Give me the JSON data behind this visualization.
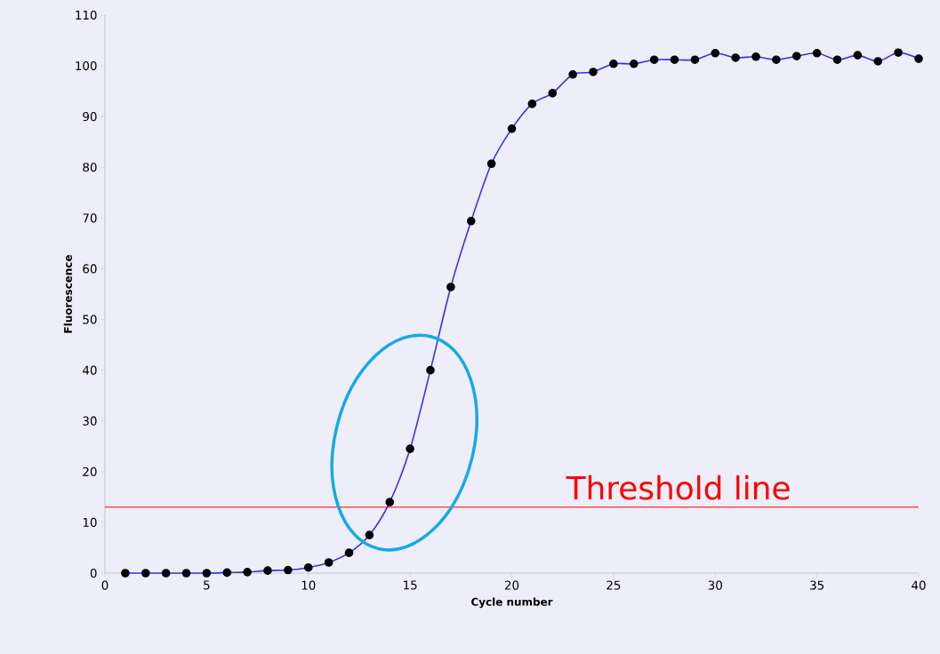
{
  "chart_data": {
    "type": "line",
    "xlabel": "Cycle number",
    "ylabel": "Fluorescence",
    "x": [
      1,
      2,
      3,
      4,
      5,
      6,
      7,
      8,
      9,
      10,
      11,
      12,
      13,
      14,
      15,
      16,
      17,
      18,
      19,
      20,
      21,
      22,
      23,
      24,
      25,
      26,
      27,
      28,
      29,
      30,
      31,
      32,
      33,
      34,
      35,
      36,
      37,
      38,
      39,
      40
    ],
    "series": [
      {
        "color": "#3333ee",
        "values": [
          0,
          0,
          0,
          0,
          0,
          0.1,
          0.2,
          0.5,
          0.6,
          1.1,
          2.1,
          4,
          7.5,
          14,
          24.5,
          40,
          56.4,
          69.4,
          80.7,
          87.6,
          92.5,
          94.6,
          98.3,
          98.8,
          100.4,
          100.4,
          101.2,
          101.2,
          101.2,
          102.5,
          101.6,
          101.8,
          101.2,
          101.9,
          102.5,
          101.2,
          102.1,
          100.9,
          102.6,
          101.4
        ]
      }
    ],
    "marker": "circle",
    "grid": false,
    "xlim": [
      0,
      40
    ],
    "ylim": [
      0,
      110
    ],
    "xticks": [
      0,
      5,
      10,
      15,
      20,
      25,
      30,
      35,
      40
    ],
    "yticks": [
      0,
      10,
      20,
      30,
      40,
      50,
      60,
      70,
      80,
      90,
      100,
      110
    ],
    "ref_lines": [
      {
        "axis": "y",
        "value": 13,
        "label": "Threshold line",
        "color": "#ff0000"
      }
    ]
  }
}
